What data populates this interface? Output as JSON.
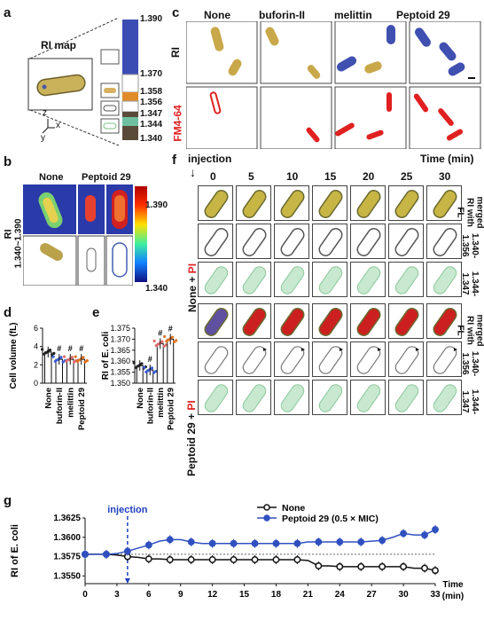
{
  "panels": {
    "a": {
      "label": "a",
      "title": "RI map",
      "scale": [
        "1.390",
        "1.370",
        "1.358",
        "1.356",
        "1.347",
        "1.344",
        "1.340"
      ]
    },
    "b": {
      "label": "b",
      "cols": [
        "None",
        "Peptoid 29"
      ],
      "row_label": "RI",
      "range_label": "1.340~1.390",
      "colorbar_top": "1.390",
      "colorbar_bottom": "1.340"
    },
    "c": {
      "label": "c",
      "cols": [
        "None",
        "buforin-II",
        "melittin",
        "Peptoid 29"
      ],
      "rows": [
        "RI",
        "FM4-64"
      ],
      "row_colors": {
        "RI": "#111111",
        "FM4-64": "#e02020"
      }
    },
    "d": {
      "label": "d"
    },
    "e": {
      "label": "e"
    },
    "f": {
      "label": "f",
      "injection": "injection",
      "time_label": "Time (min)",
      "times": [
        "0",
        "5",
        "10",
        "15",
        "20",
        "25",
        "30"
      ],
      "group1": "None + ",
      "group2": "Peptoid 29 + ",
      "pi": "PI",
      "row_labels": [
        "merged RI with FL",
        "1.340-1.356",
        "1.344-1.347",
        "merged RI with FL",
        "1.340-1.356",
        "1.344-1.347"
      ]
    },
    "g": {
      "label": "g",
      "injection": "injection"
    }
  },
  "axes_glyphs": {
    "x": "x",
    "y": "y",
    "z": "z"
  },
  "chart_data": [
    {
      "panel": "d",
      "type": "bar",
      "categories": [
        "None",
        "buforin-II",
        "melittin",
        "Peptoid 29"
      ],
      "values": [
        3.4,
        2.6,
        2.6,
        2.6
      ],
      "ylabel": "Cell volume (fL)",
      "ylim": [
        0,
        6
      ],
      "yticks": [
        0,
        2,
        4,
        6
      ],
      "significance": [
        "",
        "#",
        "#",
        "#"
      ],
      "colors": [
        "#222222",
        "#3a5bd9",
        "#e06a6a",
        "#e0701a"
      ]
    },
    {
      "panel": "e",
      "type": "bar",
      "categories": [
        "None",
        "buforin-II",
        "melittin",
        "Peptoid 29"
      ],
      "values": [
        1.358,
        1.356,
        1.368,
        1.37
      ],
      "ylabel": "RI of E. coli",
      "ylim": [
        1.35,
        1.375
      ],
      "yticks": [
        1.35,
        1.355,
        1.36,
        1.365,
        1.37,
        1.375
      ],
      "ytick_labels": [
        "1.350",
        "1.355",
        "1.360",
        "1.365",
        "1.370",
        "1.375"
      ],
      "significance": [
        "",
        "#",
        "#",
        "#"
      ],
      "colors": [
        "#222222",
        "#3a5bd9",
        "#e06a6a",
        "#e0701a"
      ]
    },
    {
      "panel": "g",
      "type": "line",
      "x": [
        0,
        1,
        2,
        3,
        4,
        5,
        6,
        7,
        8,
        9,
        10,
        11,
        12,
        13,
        14,
        15,
        16,
        17,
        18,
        19,
        20,
        21,
        22,
        23,
        24,
        25,
        26,
        27,
        28,
        29,
        30,
        31,
        32,
        33
      ],
      "series": [
        {
          "name": "None",
          "marker": "open-circle",
          "color": "#111111",
          "values": [
            1.3578,
            1.3578,
            1.3578,
            1.3577,
            1.3575,
            1.3574,
            1.3572,
            1.3572,
            1.3571,
            1.3571,
            1.3571,
            1.3571,
            1.3571,
            1.3571,
            1.3571,
            1.3571,
            1.3571,
            1.3571,
            1.3571,
            1.3571,
            1.3571,
            1.357,
            1.3563,
            1.3563,
            1.3562,
            1.3562,
            1.3562,
            1.3562,
            1.3562,
            1.3562,
            1.3562,
            1.356,
            1.356,
            1.3557
          ]
        },
        {
          "name": "Peptoid 29 (0.5 × MIC)",
          "marker": "filled-circle",
          "color": "#3050c0",
          "values": [
            1.3578,
            1.3578,
            1.3578,
            1.3579,
            1.3582,
            1.3586,
            1.359,
            1.3595,
            1.3597,
            1.3597,
            1.3594,
            1.3592,
            1.3592,
            1.3592,
            1.3592,
            1.3592,
            1.3592,
            1.3592,
            1.3592,
            1.3592,
            1.3592,
            1.3594,
            1.3594,
            1.3594,
            1.3594,
            1.3594,
            1.3594,
            1.3595,
            1.3596,
            1.36,
            1.3605,
            1.3603,
            1.3603,
            1.361
          ]
        }
      ],
      "xlabel": "Time (min)",
      "ylabel": "RI of E. coli",
      "xlim": [
        0,
        33
      ],
      "ylim": [
        1.354,
        1.3625
      ],
      "xticks": [
        0,
        3,
        6,
        9,
        12,
        15,
        18,
        21,
        24,
        27,
        30,
        33
      ],
      "yticks": [
        1.355,
        1.3575,
        1.36,
        1.3625
      ],
      "ytick_labels": [
        "1.3550",
        "1.3575",
        "1.3600",
        "1.3625"
      ],
      "reference_line": 1.3578,
      "injection_x": 4,
      "legend": "top"
    }
  ]
}
